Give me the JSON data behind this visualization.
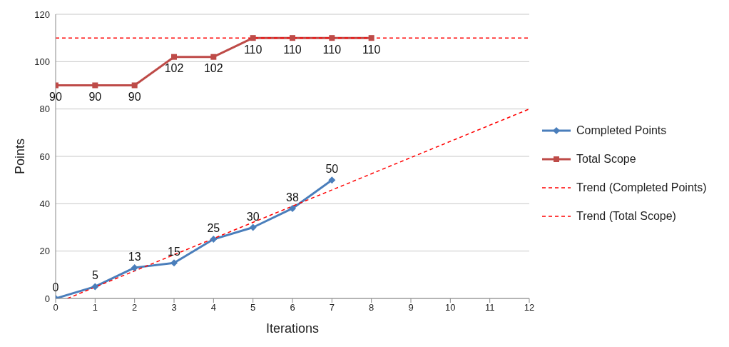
{
  "chart_data": {
    "type": "line",
    "xlabel": "Iterations",
    "ylabel": "Points",
    "xlim": [
      0,
      12
    ],
    "xticks": [
      0,
      1,
      2,
      3,
      4,
      5,
      6,
      7,
      8,
      9,
      10,
      11,
      12
    ],
    "ylim": [
      0,
      120
    ],
    "yticks": [
      0,
      20,
      40,
      60,
      80,
      100,
      120
    ],
    "grid": "y",
    "legend": "right",
    "series": [
      {
        "name": "Completed Points",
        "color": "#4a7ebb",
        "marker": "diamond",
        "x": [
          0,
          1,
          2,
          3,
          4,
          5,
          6,
          7
        ],
        "values": [
          0,
          5,
          13,
          15,
          25,
          30,
          38,
          50
        ],
        "value_labels": [
          "0",
          "5",
          "13",
          "15",
          "25",
          "30",
          "38",
          "50"
        ]
      },
      {
        "name": "Total Scope",
        "color": "#be4b48",
        "marker": "square",
        "x": [
          0,
          1,
          2,
          3,
          4,
          5,
          6,
          7,
          8
        ],
        "values": [
          90,
          90,
          90,
          102,
          102,
          110,
          110,
          110,
          110
        ],
        "value_labels": [
          "90",
          "90",
          "90",
          "102",
          "102",
          "110",
          "110",
          "110",
          "110"
        ]
      },
      {
        "name": "Trend (Completed Points)",
        "color": "#ff0000",
        "marker": "none",
        "line_style": "dashed",
        "x": [
          0.3,
          12
        ],
        "values": [
          0,
          80
        ]
      },
      {
        "name": "Trend (Total Scope)",
        "color": "#ff0000",
        "marker": "none",
        "line_style": "dashed",
        "x": [
          0,
          12
        ],
        "values": [
          110,
          110
        ]
      }
    ]
  }
}
